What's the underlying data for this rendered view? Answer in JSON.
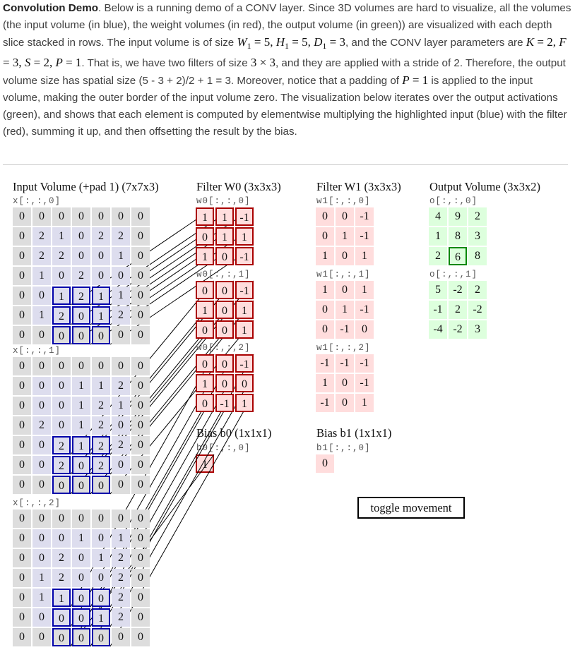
{
  "intro": {
    "label": "Convolution Demo",
    "s1": ". Below is a running demo of a CONV layer. Since 3D volumes are hard to visualize, all the volumes (the input volume (in blue), the weight volumes (in red), the output volume (in green)) are visualized with each depth slice stacked in rows. The input volume is of size ",
    "s2": ", and the CONV layer parameters are ",
    "s3": ". That is, we have two filters of size ",
    "s4": ", and they are applied with a stride of 2. Therefore, the output volume size has spatial size (5 - 3 + 2)/2 + 1 = 3. Moreover, notice that a padding of ",
    "s5": " is applied to the input volume, making the outer border of the input volume zero. The visualization below iterates over the output activations (green), and shows that each element is computed by elementwise multiplying the highlighted input (blue) with the filter (red), summing it up, and then offsetting the result by the bias.",
    "math_input": {
      "w": "W",
      "h": "H",
      "d": "D",
      "sub": "1",
      "w_val": "5",
      "h_val": "5",
      "d_val": "3"
    },
    "math_params": {
      "k": "K",
      "f": "F",
      "s": "S",
      "p": "P",
      "k_val": "2",
      "f_val": "3",
      "s_val": "2",
      "p_val": "1"
    },
    "math_filter_size": "3 × 3",
    "math_padding": {
      "p": "P",
      "val": "1"
    }
  },
  "demo": {
    "input": {
      "title": "Input Volume (+pad 1) (7x7x3)",
      "slices": [
        {
          "label": "x[:,:,0]",
          "rows": [
            [
              0,
              0,
              0,
              0,
              0,
              0,
              0
            ],
            [
              0,
              2,
              1,
              0,
              2,
              2,
              0
            ],
            [
              0,
              2,
              2,
              0,
              0,
              1,
              0
            ],
            [
              0,
              1,
              0,
              2,
              0,
              0,
              0
            ],
            [
              0,
              0,
              1,
              2,
              1,
              1,
              0
            ],
            [
              0,
              1,
              2,
              0,
              1,
              2,
              0
            ],
            [
              0,
              0,
              0,
              0,
              0,
              0,
              0
            ]
          ]
        },
        {
          "label": "x[:,:,1]",
          "rows": [
            [
              0,
              0,
              0,
              0,
              0,
              0,
              0
            ],
            [
              0,
              0,
              0,
              1,
              1,
              2,
              0
            ],
            [
              0,
              0,
              0,
              1,
              2,
              1,
              0
            ],
            [
              0,
              2,
              0,
              1,
              2,
              0,
              0
            ],
            [
              0,
              0,
              2,
              1,
              2,
              2,
              0
            ],
            [
              0,
              0,
              2,
              0,
              2,
              0,
              0
            ],
            [
              0,
              0,
              0,
              0,
              0,
              0,
              0
            ]
          ]
        },
        {
          "label": "x[:,:,2]",
          "rows": [
            [
              0,
              0,
              0,
              0,
              0,
              0,
              0
            ],
            [
              0,
              0,
              0,
              1,
              0,
              1,
              0
            ],
            [
              0,
              0,
              2,
              0,
              1,
              2,
              0
            ],
            [
              0,
              1,
              2,
              0,
              0,
              2,
              0
            ],
            [
              0,
              1,
              1,
              0,
              0,
              2,
              0
            ],
            [
              0,
              0,
              0,
              0,
              1,
              2,
              0
            ],
            [
              0,
              0,
              0,
              0,
              0,
              0,
              0
            ]
          ]
        }
      ]
    },
    "filter0": {
      "title": "Filter W0 (3x3x3)",
      "slices": [
        {
          "label": "w0[:,:,0]",
          "rows": [
            [
              1,
              1,
              -1
            ],
            [
              0,
              1,
              1
            ],
            [
              1,
              0,
              -1
            ]
          ]
        },
        {
          "label": "w0[:,:,1]",
          "rows": [
            [
              0,
              0,
              -1
            ],
            [
              1,
              0,
              1
            ],
            [
              0,
              0,
              1
            ]
          ]
        },
        {
          "label": "w0[:,:,2]",
          "rows": [
            [
              0,
              0,
              -1
            ],
            [
              1,
              0,
              0
            ],
            [
              0,
              -1,
              1
            ]
          ]
        }
      ],
      "bias_title": "Bias b0 (1x1x1)",
      "bias_label": "b0[:,:,0]",
      "bias_value": 1
    },
    "filter1": {
      "title": "Filter W1 (3x3x3)",
      "slices": [
        {
          "label": "w1[:,:,0]",
          "rows": [
            [
              0,
              0,
              -1
            ],
            [
              0,
              1,
              -1
            ],
            [
              1,
              0,
              1
            ]
          ]
        },
        {
          "label": "w1[:,:,1]",
          "rows": [
            [
              1,
              0,
              1
            ],
            [
              0,
              1,
              -1
            ],
            [
              0,
              -1,
              0
            ]
          ]
        },
        {
          "label": "w1[:,:,2]",
          "rows": [
            [
              -1,
              -1,
              -1
            ],
            [
              1,
              0,
              -1
            ],
            [
              -1,
              0,
              1
            ]
          ]
        }
      ],
      "bias_title": "Bias b1 (1x1x1)",
      "bias_label": "b1[:,:,0]",
      "bias_value": 0
    },
    "output": {
      "title": "Output Volume (3x3x2)",
      "slices": [
        {
          "label": "o[:,:,0]",
          "rows": [
            [
              4,
              9,
              2
            ],
            [
              1,
              8,
              3
            ],
            [
              2,
              6,
              8
            ]
          ]
        },
        {
          "label": "o[:,:,1]",
          "rows": [
            [
              5,
              -2,
              2
            ],
            [
              -1,
              2,
              -2
            ],
            [
              -4,
              -2,
              3
            ]
          ]
        }
      ]
    },
    "highlight": {
      "filter": 0,
      "out_row": 2,
      "out_col": 1
    },
    "toggle_label": "toggle movement"
  },
  "colors": {
    "input_bg": "#ddddee",
    "pad_bg": "#dddddd",
    "weight_bg": "#ffdddd",
    "output_bg": "#ddffdd",
    "input_hl": "#0000aa",
    "weight_hl": "#aa0000",
    "output_hl": "#008800"
  }
}
